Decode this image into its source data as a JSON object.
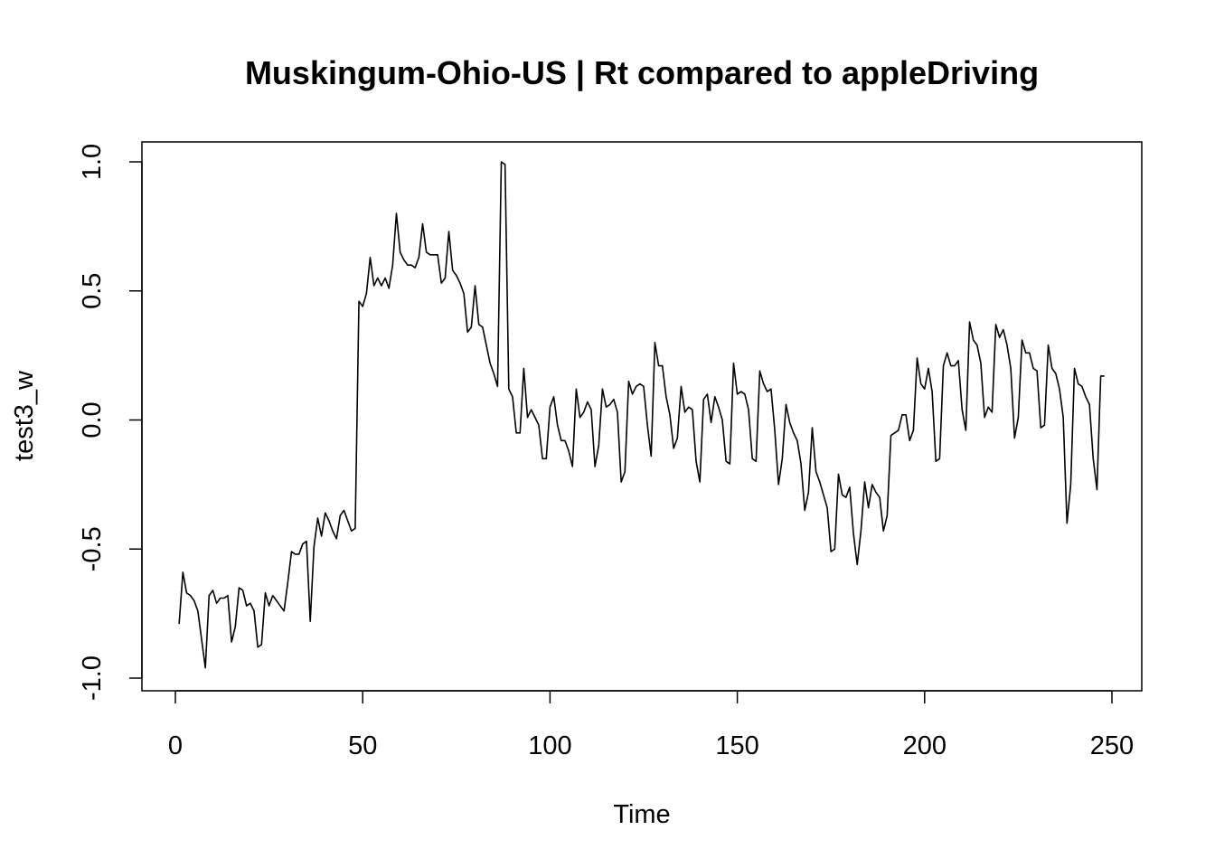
{
  "chart_data": {
    "type": "line",
    "title": "Muskingum-Ohio-US | Rt compared to appleDriving",
    "xlabel": "Time",
    "ylabel": "test3_w",
    "xlim": [
      0,
      250
    ],
    "ylim": [
      -1.0,
      1.0
    ],
    "x_ticks": [
      0,
      50,
      100,
      150,
      200,
      250
    ],
    "x_tick_labels": [
      "0",
      "50",
      "100",
      "150",
      "200",
      "250"
    ],
    "y_ticks": [
      -1.0,
      -0.5,
      0.0,
      0.5,
      1.0
    ],
    "y_tick_labels": [
      "-1.0",
      "-0.5",
      "0.0",
      "0.5",
      "1.0"
    ],
    "grid": false,
    "series": [
      {
        "x_start": 1,
        "x_step": 1,
        "values": [
          -0.79,
          -0.59,
          -0.67,
          -0.68,
          -0.7,
          -0.74,
          -0.85,
          -0.96,
          -0.68,
          -0.66,
          -0.71,
          -0.69,
          -0.69,
          -0.68,
          -0.86,
          -0.8,
          -0.65,
          -0.66,
          -0.72,
          -0.71,
          -0.74,
          -0.88,
          -0.87,
          -0.67,
          -0.72,
          -0.68,
          -0.7,
          -0.72,
          -0.74,
          -0.63,
          -0.51,
          -0.52,
          -0.52,
          -0.48,
          -0.47,
          -0.78,
          -0.49,
          -0.38,
          -0.45,
          -0.36,
          -0.39,
          -0.43,
          -0.46,
          -0.37,
          -0.35,
          -0.39,
          -0.43,
          -0.42,
          0.46,
          0.44,
          0.49,
          0.63,
          0.52,
          0.55,
          0.52,
          0.55,
          0.51,
          0.6,
          0.8,
          0.65,
          0.62,
          0.6,
          0.6,
          0.59,
          0.63,
          0.76,
          0.65,
          0.64,
          0.64,
          0.64,
          0.53,
          0.55,
          0.73,
          0.58,
          0.56,
          0.53,
          0.49,
          0.34,
          0.36,
          0.52,
          0.37,
          0.36,
          0.29,
          0.22,
          0.18,
          0.13,
          1.0,
          0.99,
          0.12,
          0.09,
          -0.05,
          -0.05,
          0.2,
          0.01,
          0.04,
          0.01,
          -0.02,
          -0.15,
          -0.15,
          0.05,
          0.09,
          -0.02,
          -0.08,
          -0.08,
          -0.12,
          -0.18,
          0.12,
          0.01,
          0.03,
          0.07,
          0.04,
          -0.18,
          -0.1,
          0.12,
          0.05,
          0.06,
          0.08,
          0.03,
          -0.24,
          -0.2,
          0.15,
          0.1,
          0.13,
          0.14,
          0.13,
          -0.02,
          -0.14,
          0.3,
          0.21,
          0.21,
          0.09,
          0.02,
          -0.11,
          -0.07,
          0.13,
          0.03,
          0.05,
          0.04,
          -0.16,
          -0.24,
          0.08,
          0.1,
          -0.01,
          0.09,
          0.05,
          -0.0,
          -0.16,
          -0.17,
          0.22,
          0.1,
          0.11,
          0.1,
          0.04,
          -0.15,
          -0.16,
          0.19,
          0.14,
          0.11,
          0.12,
          -0.04,
          -0.25,
          -0.15,
          0.06,
          -0.01,
          -0.05,
          -0.08,
          -0.17,
          -0.35,
          -0.28,
          -0.03,
          -0.2,
          -0.24,
          -0.29,
          -0.34,
          -0.51,
          -0.5,
          -0.21,
          -0.29,
          -0.3,
          -0.26,
          -0.44,
          -0.56,
          -0.43,
          -0.24,
          -0.34,
          -0.25,
          -0.28,
          -0.3,
          -0.43,
          -0.37,
          -0.06,
          -0.05,
          -0.04,
          0.02,
          0.02,
          -0.08,
          -0.04,
          0.24,
          0.14,
          0.12,
          0.2,
          0.11,
          -0.16,
          -0.15,
          0.21,
          0.26,
          0.21,
          0.21,
          0.23,
          0.04,
          -0.04,
          0.38,
          0.31,
          0.29,
          0.22,
          0.01,
          0.05,
          0.03,
          0.37,
          0.32,
          0.35,
          0.29,
          0.2,
          -0.07,
          0.01,
          0.31,
          0.26,
          0.26,
          0.2,
          0.19,
          -0.03,
          -0.02,
          0.29,
          0.2,
          0.18,
          0.12,
          0.01,
          -0.4,
          -0.25,
          0.2,
          0.14,
          0.13,
          0.09,
          0.06,
          -0.15,
          -0.27,
          0.17,
          0.17
        ]
      }
    ]
  }
}
